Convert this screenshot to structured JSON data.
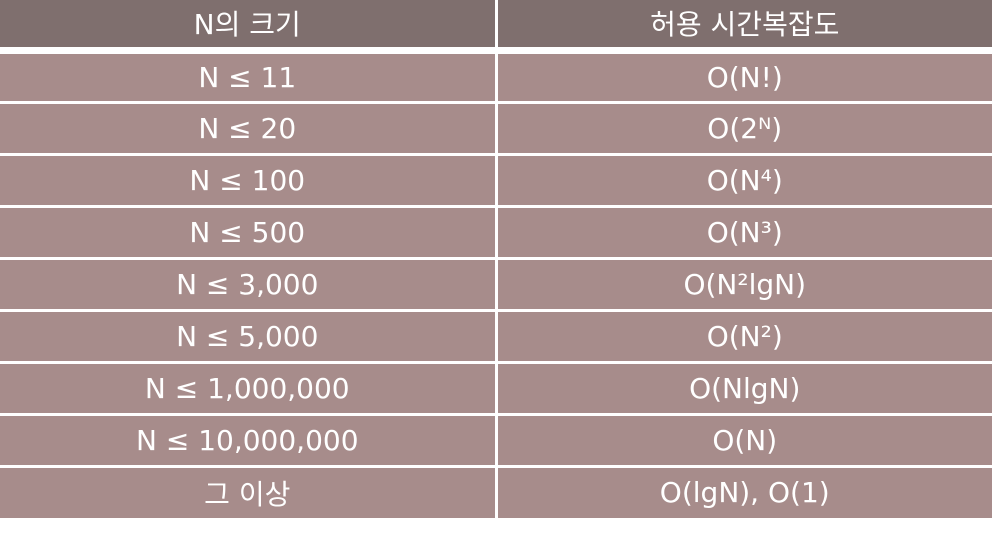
{
  "table": {
    "headers": [
      "N의 크기",
      "허용 시간복잡도"
    ],
    "rows": [
      {
        "size": "N ≤ 11",
        "complexity": "O(N!)"
      },
      {
        "size": "N ≤ 20",
        "complexity": "O(2ᴺ)"
      },
      {
        "size": "N ≤ 100",
        "complexity": "O(N⁴)"
      },
      {
        "size": "N ≤ 500",
        "complexity": "O(N³)"
      },
      {
        "size": "N ≤ 3,000",
        "complexity": "O(N²lgN)"
      },
      {
        "size": "N ≤ 5,000",
        "complexity": "O(N²)"
      },
      {
        "size": "N ≤ 1,000,000",
        "complexity": "O(NlgN)"
      },
      {
        "size": "N ≤ 10,000,000",
        "complexity": "O(N)"
      },
      {
        "size": "그 이상",
        "complexity": "O(lgN), O(1)"
      }
    ]
  },
  "colors": {
    "header_bg": "#7f6f6e",
    "row_bg": "#a78c8b",
    "text": "#ffffff",
    "divider": "#ffffff"
  }
}
